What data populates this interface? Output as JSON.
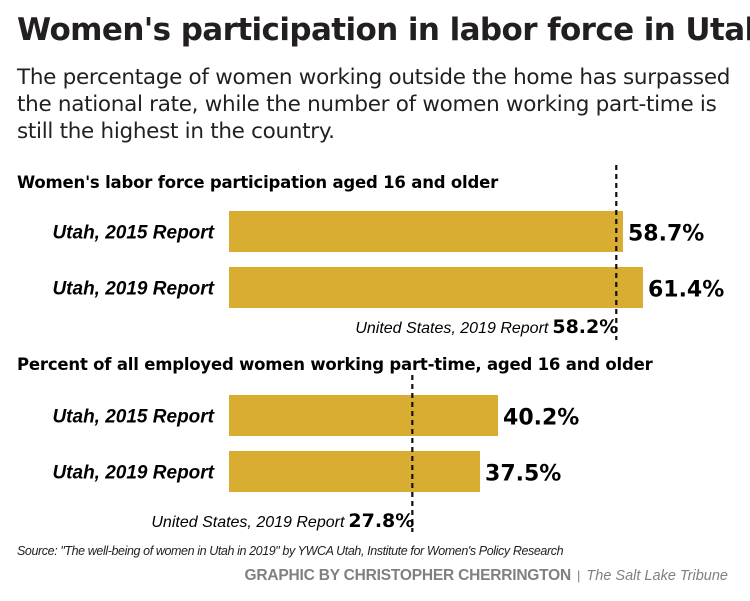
{
  "title": "Women's participation in labor force in Utah",
  "subtitle": "The percentage of women working outside the home has surpassed the national rate, while the number of women working part-time is still the highest in the country.",
  "source": "Source: \"The well-being of women in Utah in 2019\" by YWCA Utah, Institute for Women's Policy Research",
  "credit": {
    "by": "GRAPHIC BY CHRISTOPHER CHERRINGTON",
    "separator": "|",
    "publication": "The Salt Lake Tribune"
  },
  "colors": {
    "bar": "#D9AC32",
    "text": "#000000",
    "credit": "#808080"
  },
  "chart_data": [
    {
      "type": "bar",
      "orientation": "horizontal",
      "title": "Women's labor force participation aged 16 and older",
      "categories": [
        "Utah, 2015 Report",
        "Utah, 2019 Report"
      ],
      "values": [
        58.7,
        61.4
      ],
      "value_labels": [
        "58.7%",
        "61.4%"
      ],
      "reference": {
        "label": "United States, 2019 Report",
        "value": 58.2,
        "value_label": "58.2%",
        "style": "dashed"
      },
      "unit": "%"
    },
    {
      "type": "bar",
      "orientation": "horizontal",
      "title": "Percent of all employed women working part-time, aged 16 and older",
      "categories": [
        "Utah, 2015 Report",
        "Utah, 2019 Report"
      ],
      "values": [
        40.2,
        37.5
      ],
      "value_labels": [
        "40.2%",
        "37.5%"
      ],
      "reference": {
        "label": "United States, 2019 Report",
        "value": 27.8,
        "value_label": "27.8%",
        "style": "dashed"
      },
      "unit": "%"
    }
  ]
}
